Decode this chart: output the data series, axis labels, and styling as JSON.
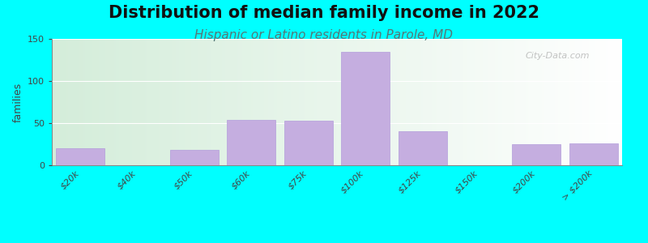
{
  "title": "Distribution of median family income in 2022",
  "subtitle": "Hispanic or Latino residents in Parole, MD",
  "ylabel": "families",
  "background_color": "#00FFFF",
  "plot_bg_left_color": "#d4edda",
  "plot_bg_right_color": "#ffffff",
  "bar_color": "#c5aee0",
  "bar_edge_color": "#b39ddb",
  "watermark": "City-Data.com",
  "categories": [
    "$20k",
    "$40k",
    "$50k",
    "$60k",
    "$75k",
    "$100k",
    "$125k",
    "$150k",
    "$200k",
    "> $200k"
  ],
  "values": [
    20,
    0,
    18,
    54,
    53,
    135,
    40,
    0,
    25,
    26
  ],
  "ylim": [
    0,
    150
  ],
  "yticks": [
    0,
    50,
    100,
    150
  ],
  "title_fontsize": 15,
  "subtitle_fontsize": 11,
  "subtitle_color": "#557777",
  "ylabel_fontsize": 9,
  "tick_fontsize": 8,
  "title_color": "#111111"
}
